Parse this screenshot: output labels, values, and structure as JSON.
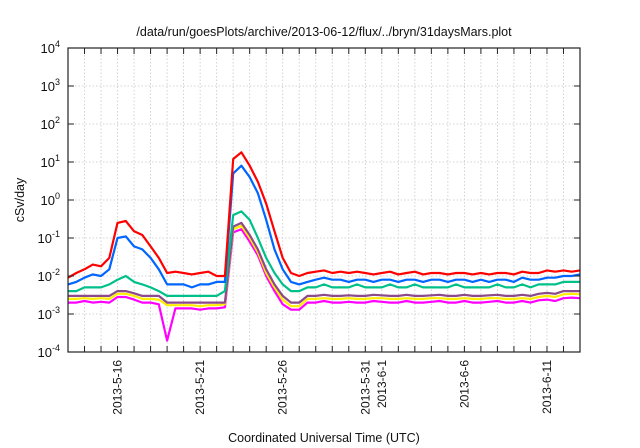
{
  "chart_data": {
    "type": "line",
    "title": "/data/run/goesPlots/archive/2013-06-12/flux/../bryn/31daysMars.plot",
    "xlabel": "Coordinated Universal Time (UTC)",
    "ylabel": "cSv/day",
    "yscale": "log",
    "ylim": [
      0.0001,
      10000
    ],
    "xlim_days": [
      0,
      31
    ],
    "x_start_date": "2013-5-13",
    "x_step_days": 0.5,
    "grid": true,
    "y_ticks": [
      {
        "base": "10",
        "exp": "4",
        "value": 10000
      },
      {
        "base": "10",
        "exp": "3",
        "value": 1000
      },
      {
        "base": "10",
        "exp": "2",
        "value": 100
      },
      {
        "base": "10",
        "exp": "1",
        "value": 10
      },
      {
        "base": "10",
        "exp": "0",
        "value": 1
      },
      {
        "base": "10",
        "exp": "-1",
        "value": 0.1
      },
      {
        "base": "10",
        "exp": "-2",
        "value": 0.01
      },
      {
        "base": "10",
        "exp": "-3",
        "value": 0.001
      },
      {
        "base": "10",
        "exp": "-4",
        "value": 0.0001
      }
    ],
    "x_ticks": [
      {
        "label": "2013-5-16",
        "day": 3
      },
      {
        "label": "2013-5-21",
        "day": 8
      },
      {
        "label": "2013-5-26",
        "day": 13
      },
      {
        "label": "2013-5-31",
        "day": 18
      },
      {
        "label": "2013-6-1",
        "day": 19
      },
      {
        "label": "2013-6-6",
        "day": 24
      },
      {
        "label": "2013-6-11",
        "day": 29
      }
    ],
    "series": [
      {
        "color": "#ff00ff",
        "values": [
          0.002,
          0.002,
          0.0022,
          0.002,
          0.0021,
          0.002,
          0.0028,
          0.0028,
          0.0024,
          0.002,
          0.002,
          0.0018,
          0.0002,
          0.0014,
          0.0014,
          0.0014,
          0.0013,
          0.0014,
          0.0014,
          0.0015,
          0.14,
          0.17,
          0.08,
          0.035,
          0.01,
          0.004,
          0.0018,
          0.0013,
          0.0013,
          0.002,
          0.002,
          0.0022,
          0.002,
          0.002,
          0.0021,
          0.002,
          0.002,
          0.0022,
          0.0021,
          0.002,
          0.002,
          0.0022,
          0.002,
          0.002,
          0.0021,
          0.0022,
          0.002,
          0.002,
          0.0022,
          0.002,
          0.002,
          0.0021,
          0.0022,
          0.002,
          0.002,
          0.0022,
          0.002,
          0.0023,
          0.0024,
          0.0022,
          0.0026,
          0.0027,
          0.0026
        ]
      },
      {
        "color": "#ffee00",
        "values": [
          0.0025,
          0.0025,
          0.0026,
          0.0025,
          0.0026,
          0.0025,
          0.0034,
          0.0034,
          0.003,
          0.0025,
          0.0025,
          0.0024,
          0.0017,
          0.0017,
          0.0017,
          0.0017,
          0.0016,
          0.0017,
          0.0017,
          0.0018,
          0.17,
          0.21,
          0.1,
          0.042,
          0.012,
          0.005,
          0.0024,
          0.0016,
          0.0016,
          0.0025,
          0.0025,
          0.0026,
          0.0025,
          0.0025,
          0.0026,
          0.0025,
          0.0025,
          0.0026,
          0.0026,
          0.0025,
          0.0025,
          0.0026,
          0.0025,
          0.0025,
          0.0026,
          0.0026,
          0.0025,
          0.0025,
          0.0026,
          0.0025,
          0.0025,
          0.0026,
          0.0026,
          0.0025,
          0.0025,
          0.0026,
          0.0025,
          0.0028,
          0.003,
          0.0028,
          0.0033,
          0.0034,
          0.0033
        ]
      },
      {
        "color": "#8b4a8b",
        "values": [
          0.003,
          0.003,
          0.003,
          0.003,
          0.003,
          0.003,
          0.004,
          0.004,
          0.0035,
          0.003,
          0.003,
          0.003,
          0.002,
          0.002,
          0.002,
          0.002,
          0.002,
          0.002,
          0.002,
          0.002,
          0.2,
          0.25,
          0.12,
          0.05,
          0.015,
          0.006,
          0.003,
          0.002,
          0.002,
          0.003,
          0.003,
          0.0032,
          0.003,
          0.003,
          0.0031,
          0.003,
          0.003,
          0.0032,
          0.0031,
          0.003,
          0.003,
          0.0032,
          0.003,
          0.003,
          0.0031,
          0.0032,
          0.003,
          0.003,
          0.0032,
          0.003,
          0.003,
          0.0031,
          0.0032,
          0.003,
          0.003,
          0.0032,
          0.003,
          0.0034,
          0.0036,
          0.0034,
          0.004,
          0.004,
          0.004
        ]
      },
      {
        "color": "#00c08a",
        "values": [
          0.004,
          0.004,
          0.005,
          0.005,
          0.005,
          0.006,
          0.008,
          0.01,
          0.007,
          0.006,
          0.005,
          0.004,
          0.003,
          0.003,
          0.003,
          0.003,
          0.003,
          0.003,
          0.003,
          0.004,
          0.4,
          0.5,
          0.3,
          0.1,
          0.03,
          0.012,
          0.006,
          0.004,
          0.004,
          0.005,
          0.005,
          0.006,
          0.005,
          0.005,
          0.005,
          0.006,
          0.005,
          0.005,
          0.005,
          0.006,
          0.005,
          0.005,
          0.006,
          0.005,
          0.005,
          0.005,
          0.005,
          0.006,
          0.005,
          0.005,
          0.005,
          0.005,
          0.006,
          0.005,
          0.005,
          0.006,
          0.005,
          0.006,
          0.006,
          0.006,
          0.007,
          0.007,
          0.007
        ]
      },
      {
        "color": "#0066ff",
        "values": [
          0.006,
          0.007,
          0.009,
          0.011,
          0.01,
          0.015,
          0.1,
          0.11,
          0.06,
          0.05,
          0.03,
          0.015,
          0.006,
          0.006,
          0.006,
          0.005,
          0.006,
          0.006,
          0.007,
          0.007,
          5,
          8,
          4,
          1.5,
          0.3,
          0.05,
          0.015,
          0.007,
          0.006,
          0.007,
          0.008,
          0.009,
          0.008,
          0.008,
          0.007,
          0.008,
          0.008,
          0.007,
          0.008,
          0.008,
          0.007,
          0.008,
          0.008,
          0.007,
          0.008,
          0.008,
          0.007,
          0.008,
          0.008,
          0.007,
          0.008,
          0.007,
          0.008,
          0.008,
          0.007,
          0.009,
          0.008,
          0.008,
          0.009,
          0.009,
          0.01,
          0.01,
          0.011
        ]
      },
      {
        "color": "#ff0000",
        "values": [
          0.009,
          0.012,
          0.015,
          0.02,
          0.018,
          0.03,
          0.25,
          0.28,
          0.15,
          0.12,
          0.06,
          0.03,
          0.012,
          0.013,
          0.012,
          0.011,
          0.012,
          0.013,
          0.01,
          0.01,
          12,
          18,
          8,
          3,
          0.8,
          0.15,
          0.03,
          0.012,
          0.01,
          0.012,
          0.013,
          0.014,
          0.012,
          0.013,
          0.012,
          0.013,
          0.012,
          0.011,
          0.012,
          0.013,
          0.011,
          0.012,
          0.013,
          0.011,
          0.012,
          0.012,
          0.011,
          0.012,
          0.012,
          0.011,
          0.012,
          0.011,
          0.012,
          0.012,
          0.011,
          0.013,
          0.012,
          0.012,
          0.014,
          0.013,
          0.014,
          0.013,
          0.014
        ]
      }
    ]
  }
}
